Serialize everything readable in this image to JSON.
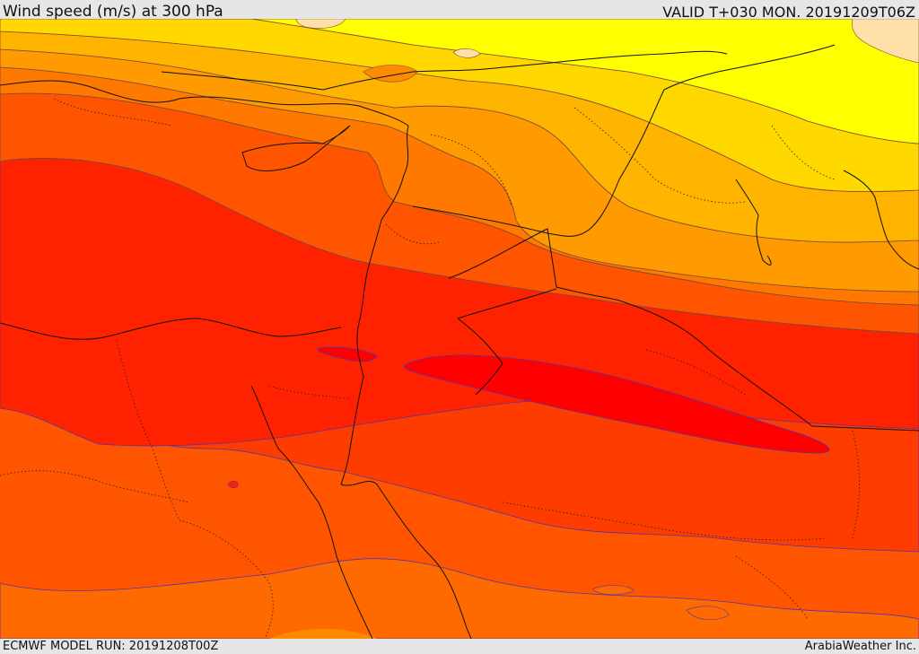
{
  "header": {
    "title": "Wind speed (m/s) at 300 hPa",
    "valid": "VALID T+030 MON. 20191209T06Z"
  },
  "footer": {
    "model_run": "ECMWF MODEL RUN: 20191208T00Z",
    "credit": "ArabiaWeather Inc."
  },
  "colors": {
    "lightest": "#ffe0a8",
    "yellow": "#ffff00",
    "gold": "#ffd800",
    "amber": "#ffb400",
    "orange": "#ff9a00",
    "dark_orange": "#ff7800",
    "orange_red": "#ff5500",
    "red_orange": "#ff3c00",
    "red": "#ff2200",
    "core": "#ff0000",
    "contour": "#7a4a3a",
    "jet_contour": "#5533aa",
    "border": "#111111"
  }
}
